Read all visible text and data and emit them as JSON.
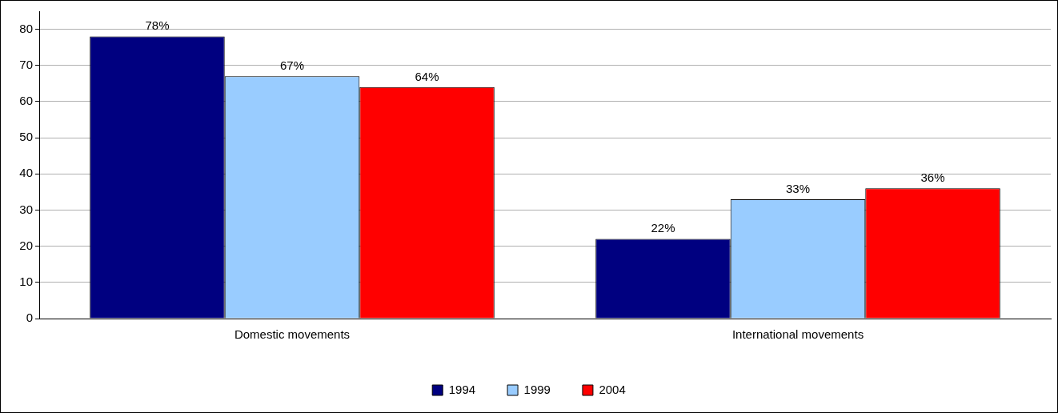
{
  "chart_data": {
    "type": "bar",
    "categories": [
      "Domestic movements",
      "International movements"
    ],
    "series": [
      {
        "name": "1994",
        "color": "#000080",
        "values": [
          78,
          22
        ],
        "value_labels": [
          "78%",
          "22%"
        ]
      },
      {
        "name": "1999",
        "color": "#99ccff",
        "values": [
          67,
          33
        ],
        "value_labels": [
          "67%",
          "33%"
        ]
      },
      {
        "name": "2004",
        "color": "#ff0000",
        "values": [
          64,
          36
        ],
        "value_labels": [
          "64%",
          "36%"
        ]
      }
    ],
    "ylim": [
      0,
      85
    ],
    "yticks": [
      0,
      10,
      20,
      30,
      40,
      50,
      60,
      70,
      80
    ],
    "grid": "y",
    "legend": "bottom"
  }
}
